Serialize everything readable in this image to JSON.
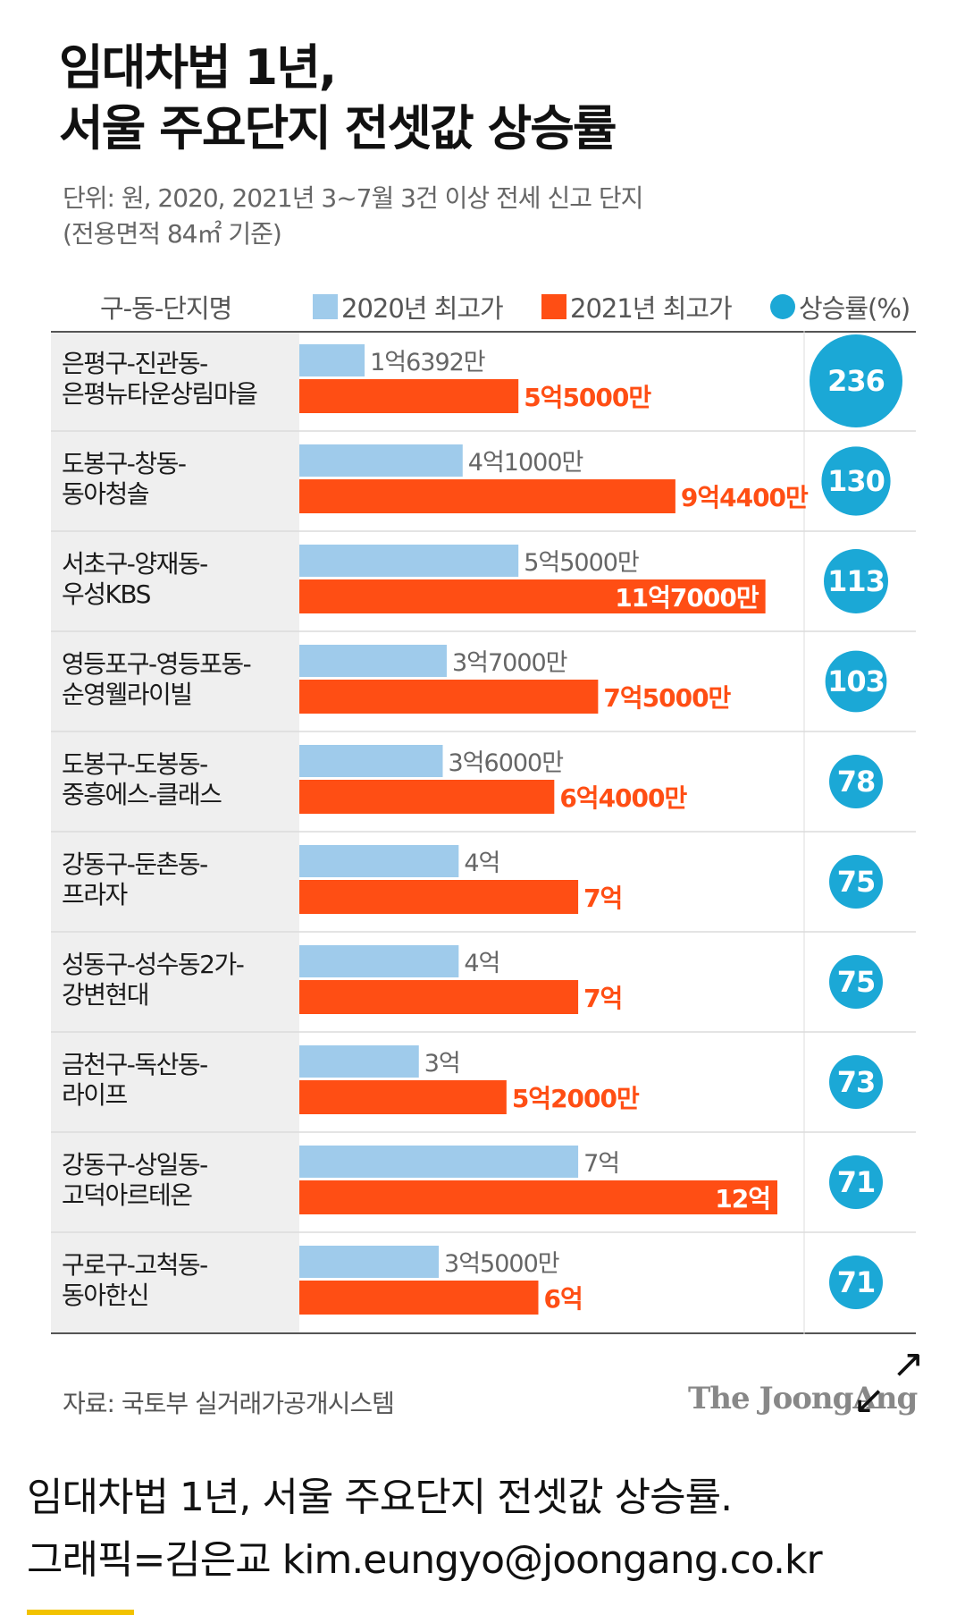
{
  "title": {
    "line1": "임대차법 1년,",
    "line2": "서울 주요단지 전셋값 상승률"
  },
  "unit_note": {
    "line1": "단위: 원, 2020, 2021년 3~7월 3건 이상 전세 신고 단지",
    "line2": "(전용면적 84㎡ 기준)"
  },
  "colors": {
    "bar_2020": "#9fcbeb",
    "bar_2021": "#ff4e14",
    "rate_circle": "#1ba8d6",
    "label_panel": "#efefef",
    "value_2021_text": "#ff4e14"
  },
  "chart_data": {
    "type": "bar",
    "orientation": "horizontal",
    "row_header": "구-동-단지명",
    "series": [
      {
        "name": "2020년 최고가",
        "values": [
          16392,
          41000,
          55000,
          37000,
          36000,
          40000,
          40000,
          30000,
          70000,
          35000
        ]
      },
      {
        "name": "2021년 최고가",
        "values": [
          55000,
          94400,
          117000,
          75000,
          64000,
          70000,
          70000,
          52000,
          120000,
          60000
        ]
      },
      {
        "name": "상승률(%)",
        "values": [
          236,
          130,
          113,
          103,
          78,
          75,
          75,
          73,
          71,
          71
        ]
      }
    ],
    "categories": [
      [
        "은평구-진관동-",
        "은평뉴타운상림마을"
      ],
      [
        "도봉구-창동-",
        "동아청솔"
      ],
      [
        "서초구-양재동-",
        "우성KBS"
      ],
      [
        "영등포구-영등포동-",
        "순영웰라이빌"
      ],
      [
        "도봉구-도봉동-",
        "중흥에스-클래스"
      ],
      [
        "강동구-둔촌동-",
        "프라자"
      ],
      [
        "성동구-성수동2가-",
        "강변현대"
      ],
      [
        "금천구-독산동-",
        "라이프"
      ],
      [
        "강동구-상일동-",
        "고덕아르테온"
      ],
      [
        "구로구-고척동-",
        "동아한신"
      ]
    ],
    "value_labels_2020": [
      "1억6392만",
      "4억1000만",
      "5억5000만",
      "3억7000만",
      "3억6000만",
      "4억",
      "4억",
      "3억",
      "7억",
      "3억5000만"
    ],
    "value_labels_2021": [
      "5억5000만",
      "9억4400만",
      "11억7000만",
      "7억5000만",
      "6억4000만",
      "7억",
      "7억",
      "5억2000만",
      "12억",
      "6억"
    ],
    "rate_labels": [
      "236",
      "130",
      "113",
      "103",
      "78",
      "75",
      "75",
      "73",
      "71",
      "71"
    ],
    "xlim": [
      0,
      120000
    ],
    "legend_position": "top",
    "grid": false
  },
  "footer": {
    "source": "자료: 국토부 실거래가공개시스템",
    "brand": "The JoongAng"
  },
  "icons": {
    "expand": "expand-arrows-icon"
  },
  "caption": {
    "line1": "임대차법 1년, 서울 주요단지 전셋값 상승률.",
    "line2": "그래픽=김은교 kim.eungyo@joongang.co.kr"
  }
}
